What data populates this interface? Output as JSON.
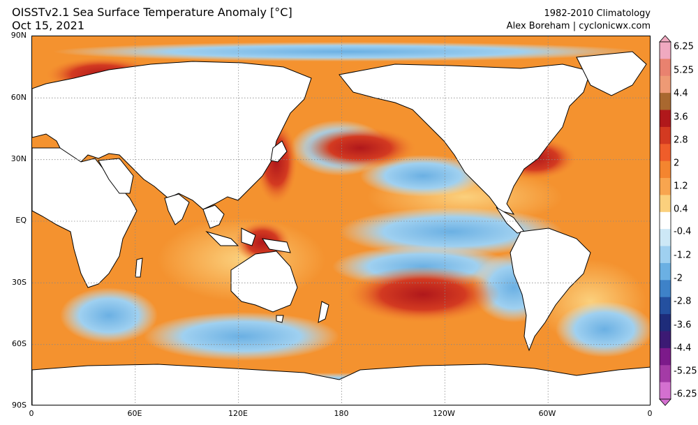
{
  "header": {
    "title": "OISSTv2.1 Sea Surface Temperature Anomaly [°C]",
    "date": "Oct 15, 2021",
    "climatology": "1982-2010 Climatology",
    "credit": "Alex Boreham | cyclonicwx.com"
  },
  "map": {
    "lat_labels": [
      "90N",
      "60N",
      "30N",
      "EQ",
      "30S",
      "60S",
      "90S"
    ],
    "lat_values": [
      90,
      60,
      30,
      0,
      -30,
      -60,
      -90
    ],
    "lon_labels": [
      "0",
      "60E",
      "120E",
      "180",
      "120W",
      "60W",
      "0"
    ],
    "lon_values": [
      0,
      60,
      120,
      180,
      240,
      300,
      360
    ],
    "ocean_base_color": "#f3aa6a",
    "land_color": "#ffffff",
    "coastline_color": "#000000",
    "gridline_style": "dotted gray"
  },
  "colorbar": {
    "labels": [
      "6.25",
      "5.25",
      "4.4",
      "3.6",
      "2.8",
      "2",
      "1.2",
      "0.4",
      "-0.4",
      "-1.2",
      "-2",
      "-2.8",
      "-3.6",
      "-4.4",
      "-5.25",
      "-6.25"
    ],
    "colors": [
      "#f0a9c0",
      "#e9826f",
      "#ee9a75",
      "#a9682f",
      "#b0181b",
      "#d33a21",
      "#ef5d2a",
      "#f4852f",
      "#f8a54f",
      "#fbd07d",
      "#ffffff",
      "#cde8f6",
      "#9fd0f0",
      "#6bb0e3",
      "#3e82c8",
      "#24509f",
      "#1e2c7a",
      "#3c1a74",
      "#7c1a8a",
      "#a43ba6",
      "#d470d0"
    ]
  }
}
